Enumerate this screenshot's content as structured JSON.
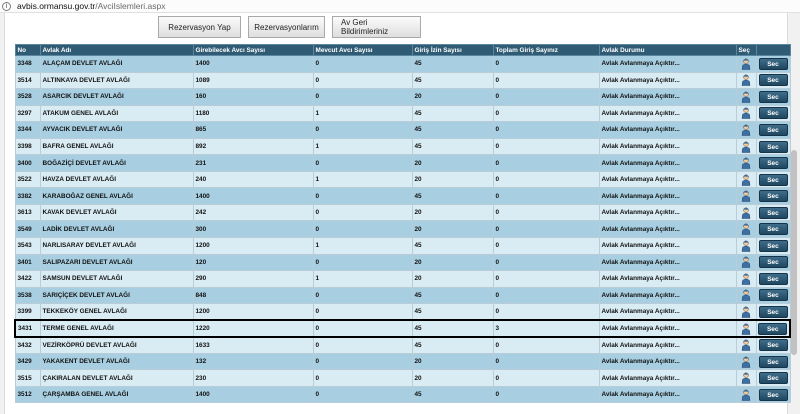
{
  "address_bar": {
    "url_host": "avbis.ormansu.gov.tr",
    "url_path": "/AvciIslemleri.aspx"
  },
  "tabs": [
    {
      "label": "Rezervasyon Yap"
    },
    {
      "label": "Rezervasyonlarım"
    },
    {
      "label": "Av Geri Bildirimleriniz"
    }
  ],
  "table": {
    "headers": [
      "No",
      "Avlak Adı",
      "Girebilecek Avcı Sayısı",
      "Mevcut Avcı Sayısı",
      "Giriş İzin Sayısı",
      "Toplam Giriş Sayınız",
      "Avlak Durumu",
      "Seç",
      ""
    ],
    "select_button_label": "Sec",
    "selected_row_index": 19,
    "rows": [
      {
        "no": "3348",
        "name": "ALAÇAM DEVLET AVLAĞI",
        "capacity": "1400",
        "current": "0",
        "permits": "45",
        "total": "0",
        "status": "Avlak Avlanmaya Açıktır..."
      },
      {
        "no": "3514",
        "name": "ALTINKAYA DEVLET AVLAĞI",
        "capacity": "1089",
        "current": "0",
        "permits": "45",
        "total": "0",
        "status": "Avlak Avlanmaya Açıktır..."
      },
      {
        "no": "3528",
        "name": "ASARCIK DEVLET AVLAĞI",
        "capacity": "160",
        "current": "0",
        "permits": "20",
        "total": "0",
        "status": "Avlak Avlanmaya Açıktır..."
      },
      {
        "no": "3297",
        "name": "ATAKUM GENEL AVLAĞI",
        "capacity": "1180",
        "current": "1",
        "permits": "45",
        "total": "0",
        "status": "Avlak Avlanmaya Açıktır..."
      },
      {
        "no": "3344",
        "name": "AYVACIK DEVLET AVLAĞI",
        "capacity": "865",
        "current": "0",
        "permits": "45",
        "total": "0",
        "status": "Avlak Avlanmaya Açıktır..."
      },
      {
        "no": "3398",
        "name": "BAFRA GENEL AVLAĞI",
        "capacity": "892",
        "current": "1",
        "permits": "45",
        "total": "0",
        "status": "Avlak Avlanmaya Açıktır..."
      },
      {
        "no": "3400",
        "name": "BOĞAZİÇİ DEVLET AVLAĞI",
        "capacity": "231",
        "current": "0",
        "permits": "20",
        "total": "0",
        "status": "Avlak Avlanmaya Açıktır..."
      },
      {
        "no": "3522",
        "name": "HAVZA DEVLET AVLAĞI",
        "capacity": "240",
        "current": "1",
        "permits": "20",
        "total": "0",
        "status": "Avlak Avlanmaya Açıktır..."
      },
      {
        "no": "3382",
        "name": "KARABOĞAZ GENEL AVLAĞI",
        "capacity": "1400",
        "current": "0",
        "permits": "45",
        "total": "0",
        "status": "Avlak Avlanmaya Açıktır..."
      },
      {
        "no": "3613",
        "name": "KAVAK DEVLET AVLAĞI",
        "capacity": "242",
        "current": "0",
        "permits": "20",
        "total": "0",
        "status": "Avlak Avlanmaya Açıktır..."
      },
      {
        "no": "3549",
        "name": "LADİK DEVLET AVLAĞI",
        "capacity": "300",
        "current": "0",
        "permits": "20",
        "total": "0",
        "status": "Avlak Avlanmaya Açıktır..."
      },
      {
        "no": "3543",
        "name": "NARLISARAY DEVLET AVLAĞI",
        "capacity": "1200",
        "current": "1",
        "permits": "45",
        "total": "0",
        "status": "Avlak Avlanmaya Açıktır..."
      },
      {
        "no": "3401",
        "name": "SALIPAZARI DEVLET AVLAĞI",
        "capacity": "120",
        "current": "0",
        "permits": "20",
        "total": "0",
        "status": "Avlak Avlanmaya Açıktır..."
      },
      {
        "no": "3422",
        "name": "SAMSUN DEVLET AVLAĞI",
        "capacity": "290",
        "current": "1",
        "permits": "20",
        "total": "0",
        "status": "Avlak Avlanmaya Açıktır..."
      },
      {
        "no": "3538",
        "name": "SARIÇİÇEK DEVLET AVLAĞI",
        "capacity": "848",
        "current": "0",
        "permits": "45",
        "total": "0",
        "status": "Avlak Avlanmaya Açıktır..."
      },
      {
        "no": "3399",
        "name": "TEKKEKÖY GENEL AVLAĞI",
        "capacity": "1200",
        "current": "0",
        "permits": "45",
        "total": "0",
        "status": "Avlak Avlanmaya Açıktır..."
      },
      {
        "no": "3431",
        "name": "TERME GENEL AVLAĞI",
        "capacity": "1220",
        "current": "0",
        "permits": "45",
        "total": "3",
        "status": "Avlak Avlanmaya Açıktır..."
      },
      {
        "no": "3432",
        "name": "VEZİRKÖPRÜ DEVLET AVLAĞI",
        "capacity": "1633",
        "current": "0",
        "permits": "45",
        "total": "0",
        "status": "Avlak Avlanmaya Açıktır..."
      },
      {
        "no": "3429",
        "name": "YAKAKENT DEVLET AVLAĞI",
        "capacity": "132",
        "current": "0",
        "permits": "20",
        "total": "0",
        "status": "Avlak Avlanmaya Açıktır..."
      },
      {
        "no": "3515",
        "name": "ÇAKIRALAN DEVLET AVLAĞI",
        "capacity": "230",
        "current": "0",
        "permits": "20",
        "total": "0",
        "status": "Avlak Avlanmaya Açıktır..."
      },
      {
        "no": "3512",
        "name": "ÇARŞAMBA GENEL AVLAĞI",
        "capacity": "1400",
        "current": "0",
        "permits": "45",
        "total": "0",
        "status": "Avlak Avlanmaya Açıktır..."
      }
    ]
  }
}
